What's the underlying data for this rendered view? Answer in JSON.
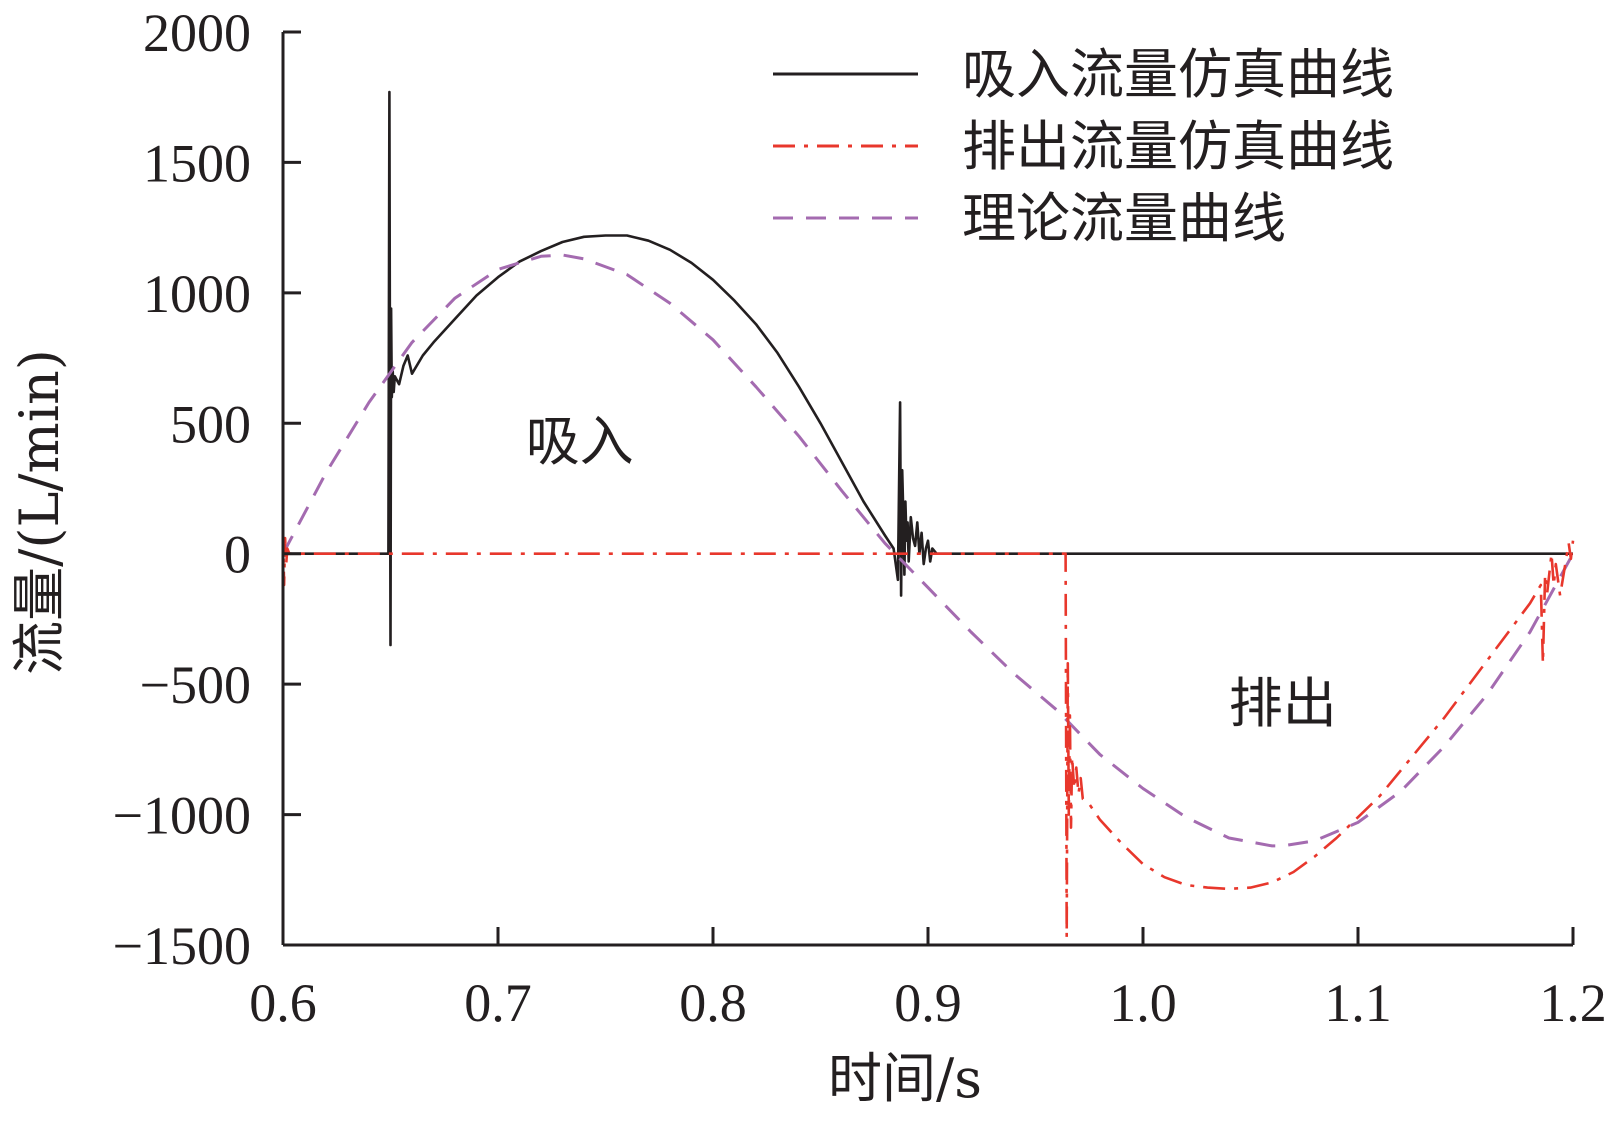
{
  "chart_data": {
    "type": "line",
    "title": "",
    "xlabel": "时间/s",
    "ylabel": "流量/(L/min)",
    "xlim": [
      0.6,
      1.2
    ],
    "ylim": [
      -1500,
      2000
    ],
    "xticks": [
      0.6,
      0.7,
      0.8,
      0.9,
      1.0,
      1.1,
      1.2
    ],
    "xtick_labels": [
      "0.6",
      "0.7",
      "0.8",
      "0.9",
      "1.0",
      "1.1",
      "1.2"
    ],
    "yticks": [
      -1500,
      -1000,
      -500,
      0,
      500,
      1000,
      1500,
      2000
    ],
    "ytick_labels": [
      "−1500",
      "−1000",
      "−500",
      "0",
      "500",
      "1000",
      "1500",
      "2000"
    ],
    "grid": false,
    "legend_position": "top-right",
    "series": [
      {
        "name": "吸入流量仿真曲线",
        "color": "#231f20",
        "style": "solid",
        "x": [
          0.6,
          0.648,
          0.649,
          0.6495,
          0.65,
          0.6503,
          0.6506,
          0.651,
          0.6515,
          0.652,
          0.654,
          0.656,
          0.658,
          0.66,
          0.665,
          0.67,
          0.68,
          0.69,
          0.7,
          0.71,
          0.72,
          0.73,
          0.74,
          0.75,
          0.76,
          0.77,
          0.78,
          0.79,
          0.8,
          0.81,
          0.82,
          0.83,
          0.84,
          0.85,
          0.86,
          0.87,
          0.88,
          0.884,
          0.886,
          0.887,
          0.8875,
          0.888,
          0.8885,
          0.889,
          0.8895,
          0.89,
          0.8905,
          0.891,
          0.892,
          0.893,
          0.894,
          0.895,
          0.896,
          0.897,
          0.898,
          0.899,
          0.9,
          0.901,
          0.902,
          0.904,
          0.91,
          0.95,
          1.0,
          1.05,
          1.1,
          1.15,
          1.2
        ],
        "y": [
          0,
          0,
          0,
          1770,
          -350,
          940,
          600,
          700,
          620,
          680,
          650,
          720,
          760,
          690,
          760,
          810,
          900,
          990,
          1060,
          1120,
          1160,
          1195,
          1215,
          1220,
          1220,
          1200,
          1165,
          1115,
          1050,
          970,
          880,
          770,
          640,
          500,
          350,
          200,
          70,
          20,
          -100,
          580,
          -160,
          320,
          150,
          -80,
          200,
          50,
          120,
          -30,
          140,
          60,
          30,
          120,
          0,
          80,
          -40,
          20,
          50,
          -30,
          20,
          0,
          0,
          0,
          0,
          0,
          0,
          0,
          0
        ]
      },
      {
        "name": "排出流量仿真曲线",
        "color": "#e8372c",
        "style": "dashdot",
        "x": [
          0.6,
          0.6005,
          0.601,
          0.6015,
          0.602,
          0.603,
          0.63,
          0.7,
          0.8,
          0.9,
          0.95,
          0.964,
          0.9645,
          0.965,
          0.9655,
          0.966,
          0.9665,
          0.967,
          0.968,
          0.969,
          0.97,
          0.971,
          0.972,
          0.975,
          0.98,
          0.99,
          1.0,
          1.01,
          1.02,
          1.03,
          1.04,
          1.05,
          1.06,
          1.07,
          1.08,
          1.09,
          1.1,
          1.11,
          1.12,
          1.13,
          1.14,
          1.15,
          1.16,
          1.17,
          1.18,
          1.185,
          1.186,
          1.187,
          1.188,
          1.19,
          1.191,
          1.192,
          1.194,
          1.196,
          1.198,
          1.199,
          1.2
        ],
        "y": [
          100,
          -120,
          60,
          -40,
          20,
          0,
          0,
          0,
          0,
          0,
          0,
          0,
          -1470,
          -420,
          -1000,
          -620,
          -1050,
          -780,
          -900,
          -820,
          -920,
          -860,
          -940,
          -960,
          -1020,
          -1110,
          -1190,
          -1240,
          -1270,
          -1280,
          -1285,
          -1280,
          -1260,
          -1220,
          -1160,
          -1090,
          -1010,
          -930,
          -830,
          -730,
          -630,
          -520,
          -410,
          -300,
          -190,
          -120,
          -420,
          -80,
          -150,
          0,
          -120,
          -40,
          -160,
          -60,
          40,
          -20,
          50
        ]
      },
      {
        "name": "理论流量曲线",
        "color": "#a46bb0",
        "style": "dashed",
        "x": [
          0.6,
          0.62,
          0.64,
          0.66,
          0.68,
          0.7,
          0.72,
          0.73,
          0.74,
          0.76,
          0.78,
          0.8,
          0.82,
          0.84,
          0.86,
          0.88,
          0.9,
          0.92,
          0.94,
          0.96,
          0.98,
          1.0,
          1.02,
          1.04,
          1.06,
          1.065,
          1.08,
          1.1,
          1.12,
          1.14,
          1.16,
          1.18,
          1.2
        ],
        "y": [
          0,
          310,
          580,
          810,
          980,
          1090,
          1140,
          1145,
          1130,
          1070,
          960,
          820,
          640,
          450,
          240,
          40,
          -130,
          -300,
          -460,
          -600,
          -770,
          -900,
          -1010,
          -1090,
          -1120,
          -1120,
          -1100,
          -1030,
          -910,
          -740,
          -540,
          -300,
          0
        ]
      }
    ],
    "annotations": [
      {
        "text": "吸入",
        "x": 0.738,
        "y": 360
      },
      {
        "text": "排出",
        "x": 1.065,
        "y": -645
      }
    ]
  }
}
